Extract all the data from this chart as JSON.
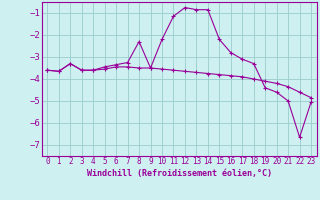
{
  "xlabel": "Windchill (Refroidissement éolien,°C)",
  "xlim": [
    -0.5,
    23.5
  ],
  "ylim": [
    -7.5,
    -0.5
  ],
  "yticks": [
    -7,
    -6,
    -5,
    -4,
    -3,
    -2,
    -1
  ],
  "xticks": [
    0,
    1,
    2,
    3,
    4,
    5,
    6,
    7,
    8,
    9,
    10,
    11,
    12,
    13,
    14,
    15,
    16,
    17,
    18,
    19,
    20,
    21,
    22,
    23
  ],
  "background_color": "#cef0f0",
  "line_color": "#990099",
  "grid_color": "#99cccc",
  "line1_x": [
    0,
    1,
    2,
    3,
    4,
    5,
    6,
    7,
    8,
    9,
    10,
    11,
    12,
    13,
    14,
    15,
    16,
    17,
    18,
    19,
    20,
    21,
    22,
    23
  ],
  "line1_y": [
    -3.6,
    -3.65,
    -3.3,
    -3.6,
    -3.6,
    -3.55,
    -3.45,
    -3.45,
    -3.5,
    -3.5,
    -3.55,
    -3.6,
    -3.65,
    -3.7,
    -3.75,
    -3.8,
    -3.85,
    -3.9,
    -4.0,
    -4.1,
    -4.2,
    -4.35,
    -4.6,
    -4.85
  ],
  "line2_x": [
    0,
    1,
    2,
    3,
    4,
    5,
    6,
    7,
    8,
    9,
    10,
    11,
    12,
    13,
    14,
    15,
    16,
    17,
    18,
    19,
    20,
    21,
    22,
    23
  ],
  "line2_y": [
    -3.6,
    -3.65,
    -3.3,
    -3.6,
    -3.6,
    -3.45,
    -3.35,
    -3.25,
    -2.3,
    -3.5,
    -2.2,
    -1.15,
    -0.75,
    -0.85,
    -0.85,
    -2.2,
    -2.8,
    -3.1,
    -3.3,
    -4.4,
    -4.6,
    -5.0,
    -6.65,
    -5.05
  ]
}
